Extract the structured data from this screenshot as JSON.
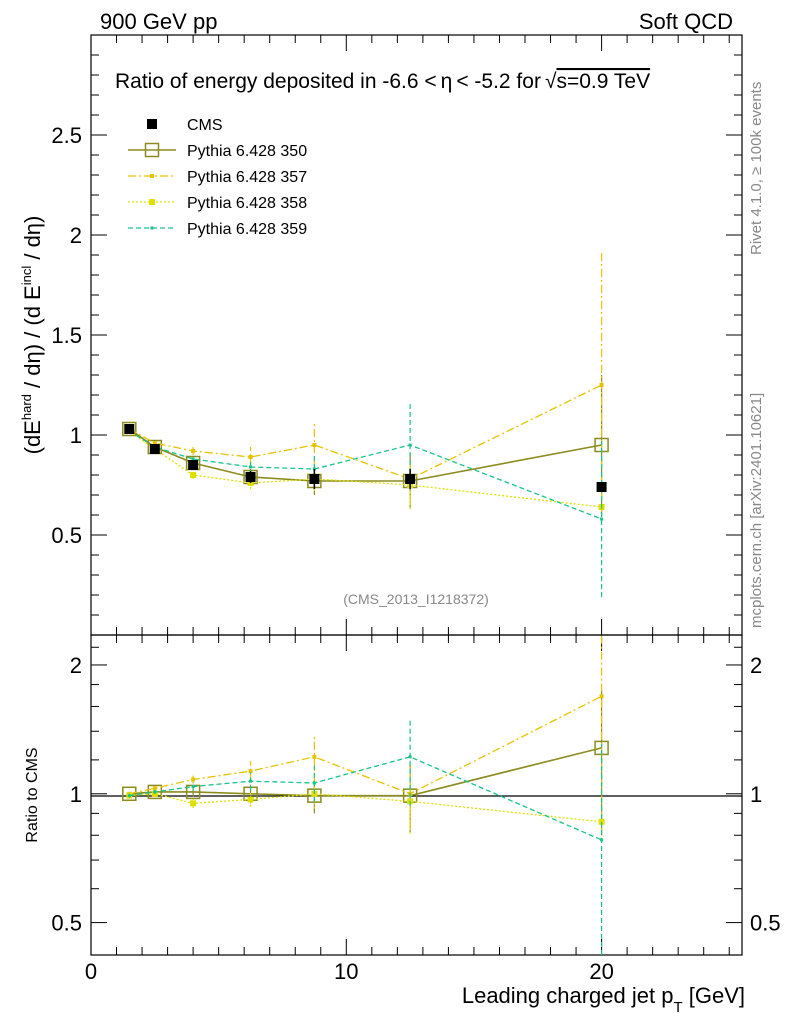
{
  "header": {
    "left": "900 GeV pp",
    "right": "Soft QCD",
    "title_prefix": "Ratio of energy deposited in -6.6 <",
    "title_mid": "< -5.2 for",
    "title_suffix": "s=0.9 TeV",
    "eta_symbol": "η",
    "sqrt_symbol": "√"
  },
  "side_labels": {
    "rivet": "Rivet 4.1.0, ≥ 100k events",
    "mcplots": "mcplots.cern.ch [arXiv:2401.10621]"
  },
  "watermark": "(CMS_2013_I1218372)",
  "main_ylabel": {
    "part1": "(dE",
    "sup1": "hard",
    "part2": " / dη) / (d E",
    "sup2": "incl",
    "part3": " / dη)"
  },
  "ratio_ylabel": "Ratio to CMS",
  "xlabel": {
    "main": "Leading charged jet p",
    "sub": "T",
    "unit": " [GeV]"
  },
  "legend": [
    {
      "label": "CMS",
      "color": "#000000",
      "style": "data"
    },
    {
      "label": "Pythia 6.428 350",
      "color": "#8b8b1e",
      "style": "solid"
    },
    {
      "label": "Pythia 6.428 357",
      "color": "#e6c300",
      "style": "dashdot"
    },
    {
      "label": "Pythia 6.428 358",
      "color": "#e0e000",
      "style": "dotted"
    },
    {
      "label": "Pythia 6.428 359",
      "color": "#19c486",
      "style": "dashed"
    }
  ],
  "chart_data": {
    "type": "line",
    "xlim": [
      0,
      25.5
    ],
    "main_ylim": [
      0,
      3.0
    ],
    "ratio_ylim": [
      0.42,
      2.35
    ],
    "x_ticks": [
      0,
      10,
      20
    ],
    "main_y_ticks": [
      "0.5",
      "1",
      "1.5",
      "2",
      "2.5"
    ],
    "ratio_y_ticks": [
      "0.5",
      "1",
      "2"
    ],
    "x": [
      1.5,
      2.5,
      4.0,
      6.25,
      8.75,
      12.5,
      20.0
    ],
    "data": {
      "name": "CMS",
      "values": [
        1.03,
        0.93,
        0.85,
        0.79,
        0.78,
        0.78,
        0.74
      ],
      "errors": [
        0.02,
        0.02,
        0.02,
        0.03,
        0.05,
        0.05,
        0.02
      ]
    },
    "series": [
      {
        "name": "Pythia 6.428 350",
        "values": [
          1.03,
          0.94,
          0.86,
          0.79,
          0.77,
          0.77,
          0.95
        ],
        "errors": [
          0.01,
          0.01,
          0.02,
          0.04,
          0.07,
          0.14,
          0.35
        ],
        "ratio": [
          1.0,
          1.01,
          1.01,
          1.0,
          0.99,
          0.99,
          1.28
        ]
      },
      {
        "name": "Pythia 6.428 357",
        "values": [
          1.03,
          0.96,
          0.92,
          0.89,
          0.95,
          0.78,
          1.25
        ],
        "errors": [
          0.01,
          0.01,
          0.02,
          0.05,
          0.12,
          0.13,
          0.66
        ],
        "ratio": [
          1.0,
          1.03,
          1.08,
          1.13,
          1.22,
          1.0,
          1.69
        ]
      },
      {
        "name": "Pythia 6.428 358",
        "values": [
          1.02,
          0.93,
          0.8,
          0.76,
          0.78,
          0.75,
          0.64
        ],
        "errors": [
          0.01,
          0.01,
          0.02,
          0.03,
          0.06,
          0.12,
          0.0
        ],
        "ratio": [
          0.99,
          1.0,
          0.95,
          0.97,
          1.0,
          0.96,
          0.86
        ]
      },
      {
        "name": "Pythia 6.428 359",
        "values": [
          1.02,
          0.94,
          0.88,
          0.84,
          0.83,
          0.95,
          0.58
        ],
        "errors": [
          0.01,
          0.01,
          0.02,
          0.04,
          0.08,
          0.22,
          0.39
        ],
        "ratio": [
          0.99,
          1.01,
          1.04,
          1.07,
          1.06,
          1.22,
          0.78
        ]
      }
    ]
  }
}
